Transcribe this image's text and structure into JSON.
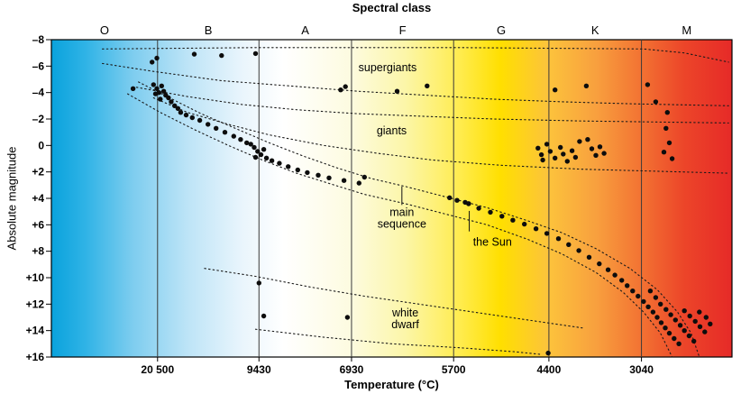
{
  "chart_data": {
    "type": "scatter",
    "description": "Hertzsprung-Russell diagram: absolute magnitude vs temperature/spectral class",
    "top_axis": {
      "title": "Spectral class",
      "classes": [
        {
          "label": "O",
          "x": 0.078
        },
        {
          "label": "B",
          "x": 0.2305
        },
        {
          "label": "A",
          "x": 0.373
        },
        {
          "label": "F",
          "x": 0.516
        },
        {
          "label": "G",
          "x": 0.661
        },
        {
          "label": "K",
          "x": 0.799
        },
        {
          "label": "M",
          "x": 0.9335
        }
      ],
      "boundaries": [
        0.156,
        0.305,
        0.441,
        0.591,
        0.731,
        0.867
      ]
    },
    "x_axis": {
      "title": "Temperature (°C)",
      "ticks": [
        {
          "label": "20 500",
          "x": 0.156
        },
        {
          "label": "9430",
          "x": 0.305
        },
        {
          "label": "6930",
          "x": 0.441
        },
        {
          "label": "5700",
          "x": 0.591
        },
        {
          "label": "4400",
          "x": 0.731
        },
        {
          "label": "3040",
          "x": 0.867
        }
      ]
    },
    "y_axis": {
      "title": "Absolute magnitude",
      "min": -8,
      "max": 16,
      "ticks": [
        {
          "label": "–8",
          "mag": -8
        },
        {
          "label": "–6",
          "mag": -6
        },
        {
          "label": "–4",
          "mag": -4
        },
        {
          "label": "–2",
          "mag": -2
        },
        {
          "label": "0",
          "mag": 0
        },
        {
          "label": "+2",
          "mag": 2
        },
        {
          "label": "+4",
          "mag": 4
        },
        {
          "label": "+6",
          "mag": 6
        },
        {
          "label": "+8",
          "mag": 8
        },
        {
          "label": "+10",
          "mag": 10
        },
        {
          "label": "+12",
          "mag": 12
        },
        {
          "label": "+14",
          "mag": 14
        },
        {
          "label": "+16",
          "mag": 16
        }
      ]
    },
    "background_gradient": [
      {
        "offset": 0.0,
        "color": "#0aa2dc"
      },
      {
        "offset": 0.05,
        "color": "#2fb3e6"
      },
      {
        "offset": 0.12,
        "color": "#7ecdef"
      },
      {
        "offset": 0.2,
        "color": "#bde4f7"
      },
      {
        "offset": 0.28,
        "color": "#e9f5fc"
      },
      {
        "offset": 0.34,
        "color": "#ffffff"
      },
      {
        "offset": 0.44,
        "color": "#fdfbe0"
      },
      {
        "offset": 0.52,
        "color": "#fcf6a8"
      },
      {
        "offset": 0.6,
        "color": "#ffec4f"
      },
      {
        "offset": 0.66,
        "color": "#ffdf00"
      },
      {
        "offset": 0.73,
        "color": "#fcc33c"
      },
      {
        "offset": 0.8,
        "color": "#f8a03e"
      },
      {
        "offset": 0.87,
        "color": "#f27032"
      },
      {
        "offset": 0.93,
        "color": "#ec4529"
      },
      {
        "offset": 1.0,
        "color": "#e62a28"
      }
    ],
    "marker_color": "#0d0d0d",
    "annotations": [
      {
        "name": "supergiants-label",
        "lines": [
          "supergiants"
        ],
        "x": 0.494,
        "mag": -5.9
      },
      {
        "name": "giants-label",
        "lines": [
          "giants"
        ],
        "x": 0.5,
        "mag": -1.1
      },
      {
        "name": "main-sequence-label",
        "lines": [
          "main",
          "sequence"
        ],
        "x": 0.515,
        "mag": 5.5,
        "pointer": {
          "x": 0.515,
          "from_mag": 4.5,
          "to_mag": 3.1
        }
      },
      {
        "name": "sun-label",
        "lines": [
          "the Sun"
        ],
        "x": 0.648,
        "mag": 7.3,
        "pointer": {
          "x": 0.614,
          "from_mag": 6.5,
          "to_mag": 4.95
        }
      },
      {
        "name": "white-dwarf-label",
        "lines": [
          "white",
          "dwarf"
        ],
        "x": 0.52,
        "mag": 13.1
      }
    ],
    "sun": {
      "x": 0.613,
      "mag": 4.4
    },
    "boundary_curves": [
      {
        "name": "supergiants-top",
        "points": [
          [
            0.075,
            -7.3
          ],
          [
            0.3,
            -7.4
          ],
          [
            0.6,
            -7.4
          ],
          [
            0.87,
            -7.3
          ],
          [
            0.93,
            -7.0
          ],
          [
            0.995,
            -6.3
          ]
        ]
      },
      {
        "name": "supergiants-bottom",
        "points": [
          [
            0.075,
            -6.2
          ],
          [
            0.15,
            -5.6
          ],
          [
            0.25,
            -4.9
          ],
          [
            0.35,
            -4.5
          ],
          [
            0.45,
            -4.1
          ],
          [
            0.55,
            -3.8
          ],
          [
            0.65,
            -3.5
          ],
          [
            0.75,
            -3.3
          ],
          [
            0.85,
            -3.15
          ],
          [
            0.995,
            -3.0
          ]
        ]
      },
      {
        "name": "giants-top",
        "points": [
          [
            0.125,
            -4.4
          ],
          [
            0.2,
            -3.7
          ],
          [
            0.28,
            -3.1
          ],
          [
            0.36,
            -2.7
          ],
          [
            0.45,
            -2.4
          ],
          [
            0.55,
            -2.2
          ],
          [
            0.65,
            -2.0
          ],
          [
            0.78,
            -1.85
          ],
          [
            0.995,
            -1.7
          ]
        ]
      },
      {
        "name": "giants-bottom",
        "points": [
          [
            0.15,
            -3.6
          ],
          [
            0.2,
            -2.5
          ],
          [
            0.26,
            -1.6
          ],
          [
            0.32,
            -0.8
          ],
          [
            0.4,
            0.0
          ],
          [
            0.48,
            0.6
          ],
          [
            0.56,
            1.1
          ],
          [
            0.66,
            1.5
          ],
          [
            0.78,
            1.8
          ],
          [
            0.995,
            2.1
          ]
        ]
      },
      {
        "name": "main-sequence-top",
        "points": [
          [
            0.128,
            -4.8
          ],
          [
            0.17,
            -3.7
          ],
          [
            0.22,
            -2.4
          ],
          [
            0.27,
            -1.3
          ],
          [
            0.32,
            -0.2
          ],
          [
            0.37,
            0.8
          ],
          [
            0.42,
            1.7
          ],
          [
            0.47,
            2.5
          ],
          [
            0.52,
            3.1
          ],
          [
            0.58,
            3.9
          ],
          [
            0.64,
            4.7
          ],
          [
            0.7,
            5.7
          ],
          [
            0.75,
            6.6
          ],
          [
            0.8,
            7.8
          ],
          [
            0.85,
            9.3
          ],
          [
            0.89,
            10.9
          ],
          [
            0.92,
            12.6
          ],
          [
            0.94,
            14.2
          ],
          [
            0.952,
            16.0
          ]
        ]
      },
      {
        "name": "main-sequence-bottom",
        "points": [
          [
            0.112,
            -3.9
          ],
          [
            0.16,
            -2.5
          ],
          [
            0.21,
            -1.2
          ],
          [
            0.26,
            0.0
          ],
          [
            0.31,
            1.1
          ],
          [
            0.36,
            2.1
          ],
          [
            0.41,
            2.9
          ],
          [
            0.46,
            3.7
          ],
          [
            0.52,
            4.4
          ],
          [
            0.58,
            5.2
          ],
          [
            0.64,
            6.0
          ],
          [
            0.7,
            7.1
          ],
          [
            0.75,
            8.2
          ],
          [
            0.8,
            9.6
          ],
          [
            0.84,
            11.1
          ],
          [
            0.87,
            12.6
          ],
          [
            0.895,
            14.2
          ],
          [
            0.912,
            16.0
          ]
        ]
      },
      {
        "name": "white-dwarf-top",
        "points": [
          [
            0.225,
            9.3
          ],
          [
            0.3,
            9.9
          ],
          [
            0.38,
            10.7
          ],
          [
            0.46,
            11.4
          ],
          [
            0.54,
            12.0
          ],
          [
            0.62,
            12.6
          ],
          [
            0.7,
            13.2
          ],
          [
            0.78,
            13.8
          ]
        ]
      },
      {
        "name": "white-dwarf-bottom",
        "points": [
          [
            0.3,
            13.9
          ],
          [
            0.4,
            14.5
          ],
          [
            0.5,
            15.0
          ],
          [
            0.6,
            15.3
          ],
          [
            0.68,
            15.6
          ],
          [
            0.72,
            15.8
          ]
        ]
      }
    ],
    "stars": [
      [
        0.12,
        -4.3
      ],
      [
        0.148,
        -6.3
      ],
      [
        0.15,
        -4.6
      ],
      [
        0.153,
        -3.9
      ],
      [
        0.155,
        -4.3
      ],
      [
        0.158,
        -4.0
      ],
      [
        0.16,
        -3.5
      ],
      [
        0.162,
        -4.5
      ],
      [
        0.165,
        -4.1
      ],
      [
        0.168,
        -3.8
      ],
      [
        0.172,
        -3.6
      ],
      [
        0.176,
        -3.3
      ],
      [
        0.181,
        -3.0
      ],
      [
        0.186,
        -2.8
      ],
      [
        0.19,
        -2.5
      ],
      [
        0.198,
        -2.3
      ],
      [
        0.207,
        -2.1
      ],
      [
        0.218,
        -1.9
      ],
      [
        0.23,
        -1.6
      ],
      [
        0.242,
        -1.3
      ],
      [
        0.255,
        -1.0
      ],
      [
        0.268,
        -0.7
      ],
      [
        0.278,
        -0.45
      ],
      [
        0.287,
        -0.2
      ],
      [
        0.293,
        -0.1
      ],
      [
        0.298,
        0.15
      ],
      [
        0.303,
        0.45
      ],
      [
        0.308,
        0.7
      ],
      [
        0.3,
        0.9
      ],
      [
        0.312,
        0.3
      ],
      [
        0.316,
        0.95
      ],
      [
        0.324,
        1.15
      ],
      [
        0.335,
        1.35
      ],
      [
        0.348,
        1.6
      ],
      [
        0.362,
        1.85
      ],
      [
        0.376,
        2.05
      ],
      [
        0.392,
        2.25
      ],
      [
        0.408,
        2.45
      ],
      [
        0.43,
        2.65
      ],
      [
        0.452,
        2.85
      ],
      [
        0.46,
        2.4
      ],
      [
        0.585,
        3.95
      ],
      [
        0.596,
        4.15
      ],
      [
        0.608,
        4.3
      ],
      [
        0.628,
        4.75
      ],
      [
        0.645,
        5.05
      ],
      [
        0.662,
        5.35
      ],
      [
        0.678,
        5.65
      ],
      [
        0.695,
        5.95
      ],
      [
        0.712,
        6.3
      ],
      [
        0.728,
        6.65
      ],
      [
        0.745,
        7.05
      ],
      [
        0.76,
        7.5
      ],
      [
        0.775,
        7.95
      ],
      [
        0.79,
        8.45
      ],
      [
        0.805,
        8.95
      ],
      [
        0.818,
        9.4
      ],
      [
        0.828,
        9.8
      ],
      [
        0.838,
        10.2
      ],
      [
        0.846,
        10.6
      ],
      [
        0.854,
        11.0
      ],
      [
        0.862,
        11.4
      ],
      [
        0.87,
        11.8
      ],
      [
        0.877,
        12.2
      ],
      [
        0.884,
        12.6
      ],
      [
        0.89,
        13.0
      ],
      [
        0.896,
        13.4
      ],
      [
        0.902,
        13.8
      ],
      [
        0.908,
        14.2
      ],
      [
        0.915,
        14.6
      ],
      [
        0.922,
        15.0
      ],
      [
        0.88,
        11.0
      ],
      [
        0.888,
        11.5
      ],
      [
        0.895,
        12.0
      ],
      [
        0.903,
        12.4
      ],
      [
        0.91,
        12.8
      ],
      [
        0.917,
        13.2
      ],
      [
        0.924,
        13.6
      ],
      [
        0.93,
        14.0
      ],
      [
        0.937,
        14.4
      ],
      [
        0.944,
        14.8
      ],
      [
        0.93,
        12.5
      ],
      [
        0.938,
        12.9
      ],
      [
        0.946,
        13.3
      ],
      [
        0.953,
        13.7
      ],
      [
        0.96,
        14.1
      ],
      [
        0.952,
        12.6
      ],
      [
        0.962,
        13.0
      ],
      [
        0.968,
        13.5
      ],
      [
        0.155,
        -6.6
      ],
      [
        0.21,
        -6.9
      ],
      [
        0.25,
        -6.8
      ],
      [
        0.3,
        -6.95
      ],
      [
        0.425,
        -4.2
      ],
      [
        0.432,
        -4.45
      ],
      [
        0.508,
        -4.1
      ],
      [
        0.552,
        -4.5
      ],
      [
        0.74,
        -4.2
      ],
      [
        0.786,
        -4.5
      ],
      [
        0.876,
        -4.6
      ],
      [
        0.888,
        -3.3
      ],
      [
        0.905,
        -2.5
      ],
      [
        0.715,
        0.2
      ],
      [
        0.72,
        0.7
      ],
      [
        0.722,
        1.1
      ],
      [
        0.728,
        -0.1
      ],
      [
        0.733,
        0.45
      ],
      [
        0.74,
        0.95
      ],
      [
        0.748,
        0.15
      ],
      [
        0.752,
        0.65
      ],
      [
        0.758,
        1.2
      ],
      [
        0.765,
        0.4
      ],
      [
        0.77,
        0.9
      ],
      [
        0.776,
        -0.3
      ],
      [
        0.788,
        -0.45
      ],
      [
        0.794,
        0.25
      ],
      [
        0.8,
        0.75
      ],
      [
        0.806,
        0.1
      ],
      [
        0.812,
        0.6
      ],
      [
        0.903,
        -1.3
      ],
      [
        0.908,
        -0.2
      ],
      [
        0.9,
        0.5
      ],
      [
        0.912,
        1.0
      ],
      [
        0.305,
        10.4
      ],
      [
        0.312,
        12.9
      ],
      [
        0.435,
        13.0
      ],
      [
        0.73,
        15.7
      ]
    ]
  }
}
